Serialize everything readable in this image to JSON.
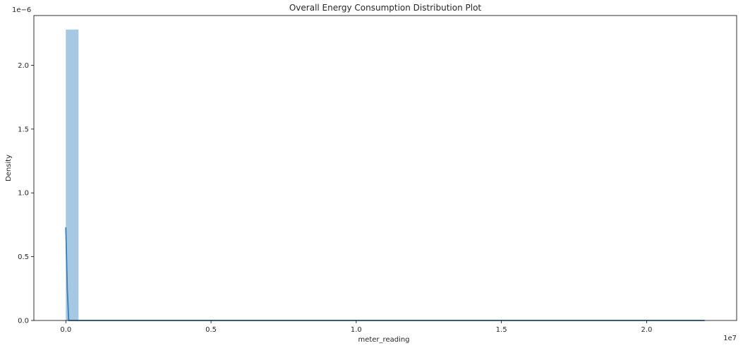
{
  "chart_data": {
    "type": "bar",
    "title": "Overall Energy Consumption Distribution Plot",
    "xlabel": "meter_reading",
    "ylabel": "Density",
    "x_offset_label": "1e7",
    "y_offset_label": "1e−6",
    "xlim": [
      -1100000,
      23100000
    ],
    "ylim": [
      0,
      2.39
    ],
    "x_ticks": [
      0,
      0.5,
      1.0,
      1.5,
      2.0
    ],
    "x_tick_labels": [
      "0.0",
      "0.5",
      "1.0",
      "1.5",
      "2.0"
    ],
    "y_ticks": [
      0,
      0.5,
      1.0,
      1.5,
      2.0
    ],
    "y_tick_labels": [
      "0.0",
      "0.5",
      "1.0",
      "1.5",
      "2.0"
    ],
    "grid": false,
    "histogram": {
      "bin_start": 0,
      "bin_width": 438000,
      "bin_count": 50,
      "densities": [
        2.28,
        0,
        0,
        0,
        0,
        0,
        0,
        0,
        0,
        0,
        0,
        0,
        0,
        0,
        0,
        0,
        0,
        0,
        0,
        0,
        0,
        0,
        0,
        0,
        0,
        0,
        0,
        0,
        0,
        0,
        0,
        0,
        0,
        0,
        0,
        0,
        0,
        0,
        0,
        0,
        0,
        0,
        0,
        0,
        0,
        0,
        0,
        0,
        0,
        0
      ],
      "color": "#a6c8e3"
    },
    "kde_line": {
      "color": "#3b7fb6",
      "x": [
        0,
        50000,
        100000,
        200000,
        22000000
      ],
      "y": [
        0.73,
        0.25,
        0.0,
        0.0,
        0.0
      ]
    }
  }
}
